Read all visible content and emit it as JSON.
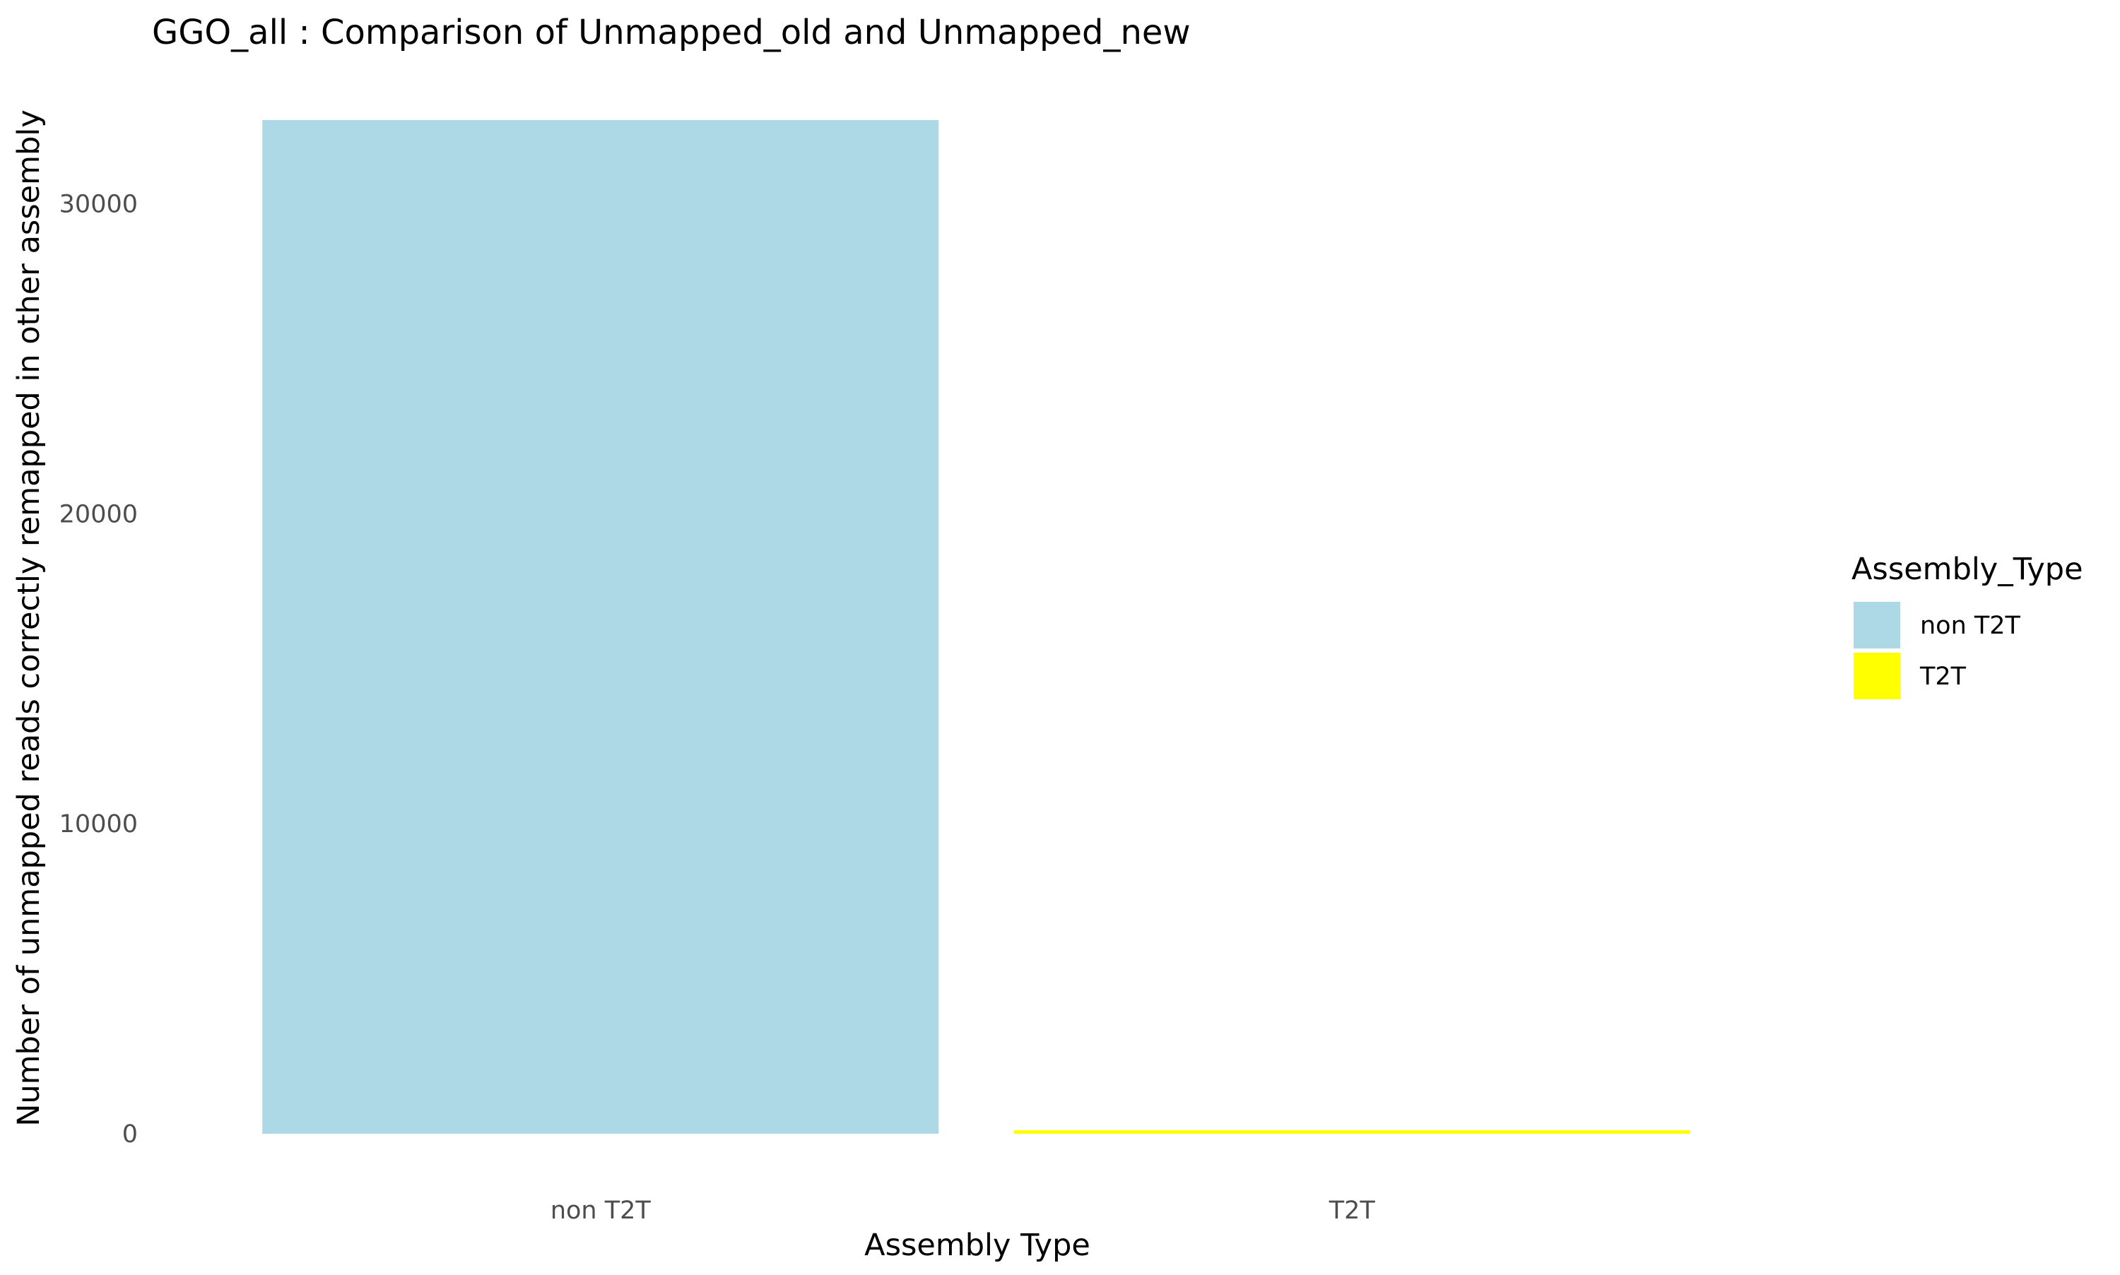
{
  "chart_data": {
    "type": "bar",
    "title": "GGO_all : Comparison of Unmapped_old and Unmapped_new",
    "xlabel": "Assembly Type",
    "ylabel": "Number of unmapped reads correctly remapped in other assembly",
    "categories": [
      "non T2T",
      "T2T"
    ],
    "values": [
      32700,
      100
    ],
    "colors": [
      "#add8e6",
      "#ffff00"
    ],
    "ylim": [
      0,
      32700
    ],
    "yticks": [
      0,
      10000,
      20000,
      30000
    ],
    "grid": false,
    "legend": {
      "title": "Assembly_Type",
      "position": "right",
      "entries": [
        {
          "label": "non T2T",
          "color": "#add8e6"
        },
        {
          "label": "T2T",
          "color": "#ffff00"
        }
      ]
    }
  }
}
